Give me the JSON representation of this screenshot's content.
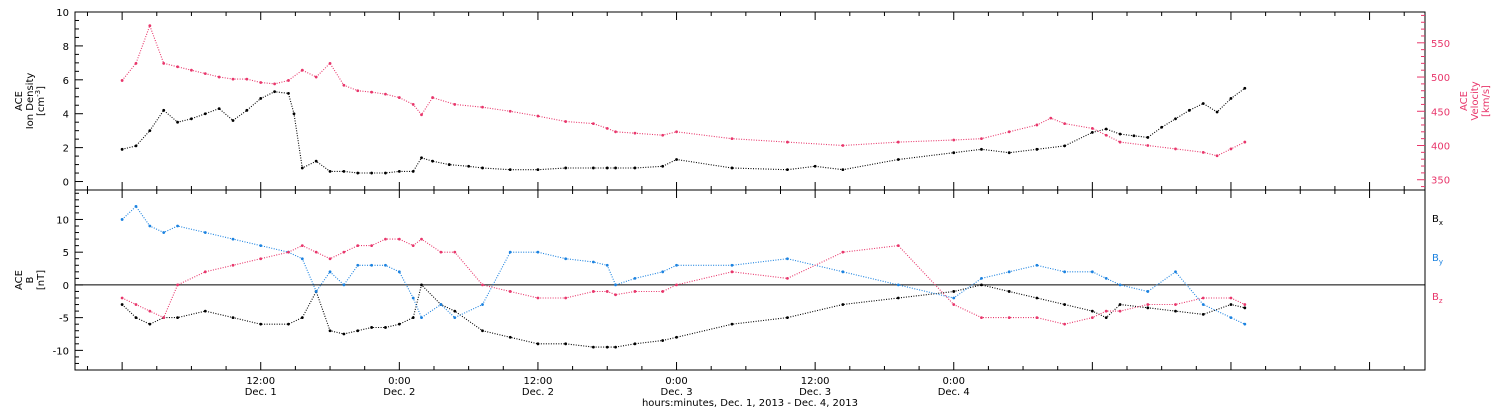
{
  "chart_data": [
    {
      "type": "scatter",
      "panel": "top",
      "ylabel": {
        "line1": "ACE",
        "line2": "Ion Density",
        "unit_pre": "[cm",
        "unit_sup": "-3",
        "unit_post": "]"
      },
      "y2label": {
        "line1": "ACE",
        "line2": "Velocity",
        "unit": "[km/s]"
      },
      "ylim": [
        -0.5,
        10
      ],
      "yticks": [
        "0",
        "2",
        "4",
        "6",
        "8",
        "10"
      ],
      "y2lim": [
        335,
        595
      ],
      "y2ticks": [
        "350",
        "400",
        "450",
        "500",
        "550"
      ],
      "series": [
        {
          "key": "density",
          "color": "#000000",
          "x": [
            0.0,
            0.05,
            0.1,
            0.15,
            0.2,
            0.25,
            0.3,
            0.35,
            0.4,
            0.45,
            0.5,
            0.55,
            0.6,
            0.62,
            0.65,
            0.7,
            0.75,
            0.8,
            0.85,
            0.9,
            0.95,
            1.0,
            1.05,
            1.08,
            1.12,
            1.18,
            1.25,
            1.3,
            1.4,
            1.5,
            1.6,
            1.7,
            1.75,
            1.78,
            1.85,
            1.95,
            2.0,
            2.2,
            2.4,
            2.5,
            2.6,
            2.8,
            3.0,
            3.1,
            3.2,
            3.3,
            3.4,
            3.5,
            3.55,
            3.6,
            3.65,
            3.7,
            3.75,
            3.8,
            3.85,
            3.9,
            3.95,
            4.0,
            4.05
          ],
          "y": [
            1.9,
            2.1,
            3.0,
            4.2,
            3.5,
            3.7,
            4.0,
            4.3,
            3.6,
            4.2,
            4.9,
            5.3,
            5.2,
            4.0,
            0.8,
            1.2,
            0.6,
            0.6,
            0.5,
            0.5,
            0.5,
            0.6,
            0.6,
            1.4,
            1.2,
            1.0,
            0.9,
            0.8,
            0.7,
            0.7,
            0.8,
            0.8,
            0.8,
            0.8,
            0.8,
            0.9,
            1.3,
            0.8,
            0.7,
            0.9,
            0.7,
            1.3,
            1.7,
            1.9,
            1.7,
            1.9,
            2.1,
            2.9,
            3.1,
            2.8,
            2.7,
            2.6,
            3.2,
            3.7,
            4.2,
            4.6,
            4.1,
            4.9,
            5.5
          ]
        },
        {
          "key": "velocity",
          "color": "#e8366b",
          "axis": "right",
          "x": [
            0.0,
            0.05,
            0.1,
            0.15,
            0.2,
            0.25,
            0.3,
            0.35,
            0.4,
            0.45,
            0.5,
            0.55,
            0.6,
            0.65,
            0.7,
            0.75,
            0.8,
            0.85,
            0.9,
            0.95,
            1.0,
            1.05,
            1.08,
            1.12,
            1.2,
            1.3,
            1.4,
            1.5,
            1.6,
            1.7,
            1.75,
            1.78,
            1.85,
            1.95,
            2.0,
            2.2,
            2.4,
            2.6,
            2.8,
            3.0,
            3.1,
            3.2,
            3.3,
            3.35,
            3.4,
            3.5,
            3.55,
            3.6,
            3.7,
            3.8,
            3.9,
            3.95,
            4.0,
            4.05
          ],
          "y": [
            495,
            520,
            575,
            520,
            515,
            510,
            505,
            500,
            497,
            497,
            492,
            490,
            495,
            510,
            500,
            520,
            488,
            480,
            478,
            475,
            470,
            460,
            445,
            470,
            460,
            456,
            450,
            443,
            435,
            432,
            425,
            420,
            418,
            415,
            420,
            410,
            405,
            400,
            405,
            408,
            410,
            420,
            430,
            440,
            432,
            425,
            415,
            405,
            400,
            395,
            390,
            385,
            395,
            405
          ]
        }
      ]
    },
    {
      "type": "scatter",
      "panel": "bottom",
      "ylabel": {
        "line1": "ACE",
        "line2": "B",
        "unit": "[nT]"
      },
      "ylim": [
        -13,
        14.5
      ],
      "yticks": [
        "-10",
        "-5",
        "0",
        "5",
        "10"
      ],
      "zero_line": true,
      "legend_position": "right",
      "series": [
        {
          "key": "bx",
          "name": "B",
          "sub": "x",
          "color": "#000000",
          "x": [
            0.0,
            0.05,
            0.1,
            0.15,
            0.2,
            0.3,
            0.4,
            0.5,
            0.6,
            0.65,
            0.7,
            0.75,
            0.8,
            0.85,
            0.9,
            0.95,
            1.0,
            1.05,
            1.08,
            1.15,
            1.2,
            1.3,
            1.4,
            1.5,
            1.6,
            1.7,
            1.75,
            1.78,
            1.85,
            1.95,
            2.0,
            2.2,
            2.4,
            2.6,
            2.8,
            3.0,
            3.1,
            3.2,
            3.3,
            3.4,
            3.5,
            3.55,
            3.6,
            3.7,
            3.8,
            3.9,
            4.0,
            4.05
          ],
          "y": [
            -3,
            -5,
            -6,
            -5,
            -5,
            -4,
            -5,
            -6,
            -6,
            -5,
            -1,
            -7,
            -7.5,
            -7,
            -6.5,
            -6.5,
            -6,
            -5,
            0,
            -3,
            -4,
            -7,
            -8,
            -9,
            -9,
            -9.5,
            -9.5,
            -9.5,
            -9,
            -8.5,
            -8,
            -6,
            -5,
            -3,
            -2,
            -1,
            0,
            -1,
            -2,
            -3,
            -4,
            -5,
            -3,
            -3.5,
            -4,
            -4.5,
            -3,
            -3.5
          ]
        },
        {
          "key": "by",
          "name": "B",
          "sub": "y",
          "color": "#1b82e0",
          "x": [
            0.0,
            0.05,
            0.1,
            0.15,
            0.2,
            0.3,
            0.4,
            0.5,
            0.6,
            0.65,
            0.7,
            0.75,
            0.8,
            0.85,
            0.9,
            0.95,
            1.0,
            1.05,
            1.08,
            1.15,
            1.2,
            1.3,
            1.4,
            1.5,
            1.6,
            1.7,
            1.75,
            1.78,
            1.85,
            1.95,
            2.0,
            2.2,
            2.4,
            2.6,
            2.8,
            3.0,
            3.1,
            3.2,
            3.3,
            3.4,
            3.5,
            3.55,
            3.6,
            3.7,
            3.8,
            3.9,
            4.0,
            4.05
          ],
          "y": [
            10,
            12,
            9,
            8,
            9,
            8,
            7,
            6,
            5,
            4,
            -1,
            2,
            0,
            3,
            3,
            3,
            2,
            -2,
            -5,
            -3,
            -5,
            -3,
            5,
            5,
            4,
            3.5,
            3,
            0,
            1,
            2,
            3,
            3,
            4,
            2,
            0,
            -2,
            1,
            2,
            3,
            2,
            2,
            1,
            0,
            -1,
            2,
            -3,
            -5,
            -6
          ]
        },
        {
          "key": "bz",
          "name": "B",
          "sub": "z",
          "color": "#e8366b",
          "x": [
            0.0,
            0.05,
            0.1,
            0.15,
            0.2,
            0.3,
            0.4,
            0.5,
            0.6,
            0.65,
            0.7,
            0.75,
            0.8,
            0.85,
            0.9,
            0.95,
            1.0,
            1.05,
            1.08,
            1.15,
            1.2,
            1.3,
            1.4,
            1.5,
            1.6,
            1.7,
            1.75,
            1.78,
            1.85,
            1.95,
            2.0,
            2.2,
            2.4,
            2.6,
            2.8,
            3.0,
            3.1,
            3.2,
            3.3,
            3.4,
            3.5,
            3.55,
            3.6,
            3.7,
            3.8,
            3.9,
            4.0,
            4.05
          ],
          "y": [
            -2,
            -3,
            -4,
            -5,
            0,
            2,
            3,
            4,
            5,
            6,
            5,
            4,
            5,
            6,
            6,
            7,
            7,
            6,
            7,
            5,
            5,
            0,
            -1,
            -2,
            -2,
            -1,
            -1,
            -1.5,
            -1,
            -1,
            0,
            2,
            1,
            5,
            6,
            -3,
            -5,
            -5,
            -5,
            -6,
            -5,
            -4,
            -4,
            -3,
            -3,
            -2,
            -2,
            -3
          ]
        }
      ]
    }
  ],
  "x_axis": {
    "xlim": [
      -0.17,
      4.7
    ],
    "xlabel": "hours:minutes, Dec.  1, 2013 - Dec.  4, 2013",
    "ticks": [
      {
        "x": 0.5,
        "time": "12:00",
        "date": "Dec. 1"
      },
      {
        "x": 1.0,
        "time": "0:00",
        "date": "Dec. 2"
      },
      {
        "x": 1.5,
        "time": "12:00",
        "date": "Dec. 2"
      },
      {
        "x": 2.0,
        "time": "0:00",
        "date": "Dec. 3"
      },
      {
        "x": 2.5,
        "time": "12:00",
        "date": "Dec. 3"
      },
      {
        "x": 3.0,
        "time": "0:00",
        "date": "Dec. 4"
      }
    ]
  },
  "colors": {
    "black": "#000000",
    "pink": "#e8366b",
    "blue": "#1b82e0"
  }
}
